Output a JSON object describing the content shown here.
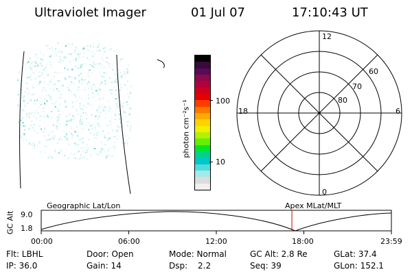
{
  "header": {
    "instrument": "Ultraviolet Imager",
    "date": "01 Jul 07",
    "time": "17:10:43 UT"
  },
  "colorbar": {
    "unit_label": "photon cm⁻²s⁻¹",
    "ticks": [
      "100",
      "10"
    ],
    "colors": [
      "#000000",
      "#3a0a3a",
      "#5a0a5a",
      "#8a0a4a",
      "#b4003c",
      "#d2001e",
      "#e60000",
      "#ff3c00",
      "#ff7800",
      "#ffaa00",
      "#ffd200",
      "#f0f000",
      "#b4f000",
      "#64f000",
      "#00e628",
      "#00d28c",
      "#00c8c8",
      "#50dcdc",
      "#a0eaea",
      "#dcdcdc",
      "#f0f0f0"
    ]
  },
  "polar_plot": {
    "mlt_labels": {
      "top": "12",
      "left": "18",
      "right": "6",
      "bottom": "0"
    },
    "lat_labels": [
      "60",
      "70",
      "80"
    ]
  },
  "altitude_strip": {
    "ylabel": "GC Alt",
    "ymax": "9.0",
    "ymin": "1.8",
    "left_caption": "Geographic Lat/Lon",
    "right_caption": "Apex MLat/MLT",
    "time_ticks": [
      "00:00",
      "06:00",
      "12:00",
      "18:00",
      "23:59"
    ],
    "current_time_hours": 17.18
  },
  "status": {
    "row1": {
      "filter": "Flt: LBHL",
      "door": "Door: Open",
      "mode": "Mode: Normal",
      "gc_alt": "GC Alt: 2.8 Re",
      "glat": "GLat: 37.4"
    },
    "row2": {
      "ip": "IP: 36.0",
      "gain": "Gain: 14",
      "dsp_label": "Dsp:",
      "dsp_value": "2.2",
      "seq": "Seq: 39",
      "glon": "GLon: 152.1"
    }
  }
}
